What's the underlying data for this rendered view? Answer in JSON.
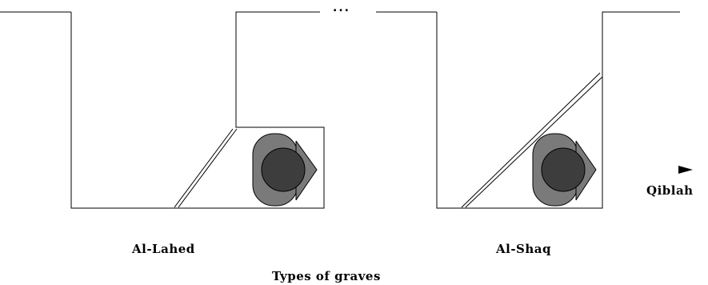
{
  "figure": {
    "continuation_mark": "...",
    "grave_types": [
      {
        "name": "Al-Lahed"
      },
      {
        "name": "Al-Shaq"
      }
    ],
    "direction_label": "Qiblah",
    "caption": "Types of graves"
  },
  "colors": {
    "line": "#000000",
    "body_fill": "#7a7a7a",
    "head_fill": "#3d3d3d",
    "background": "#ffffff"
  }
}
